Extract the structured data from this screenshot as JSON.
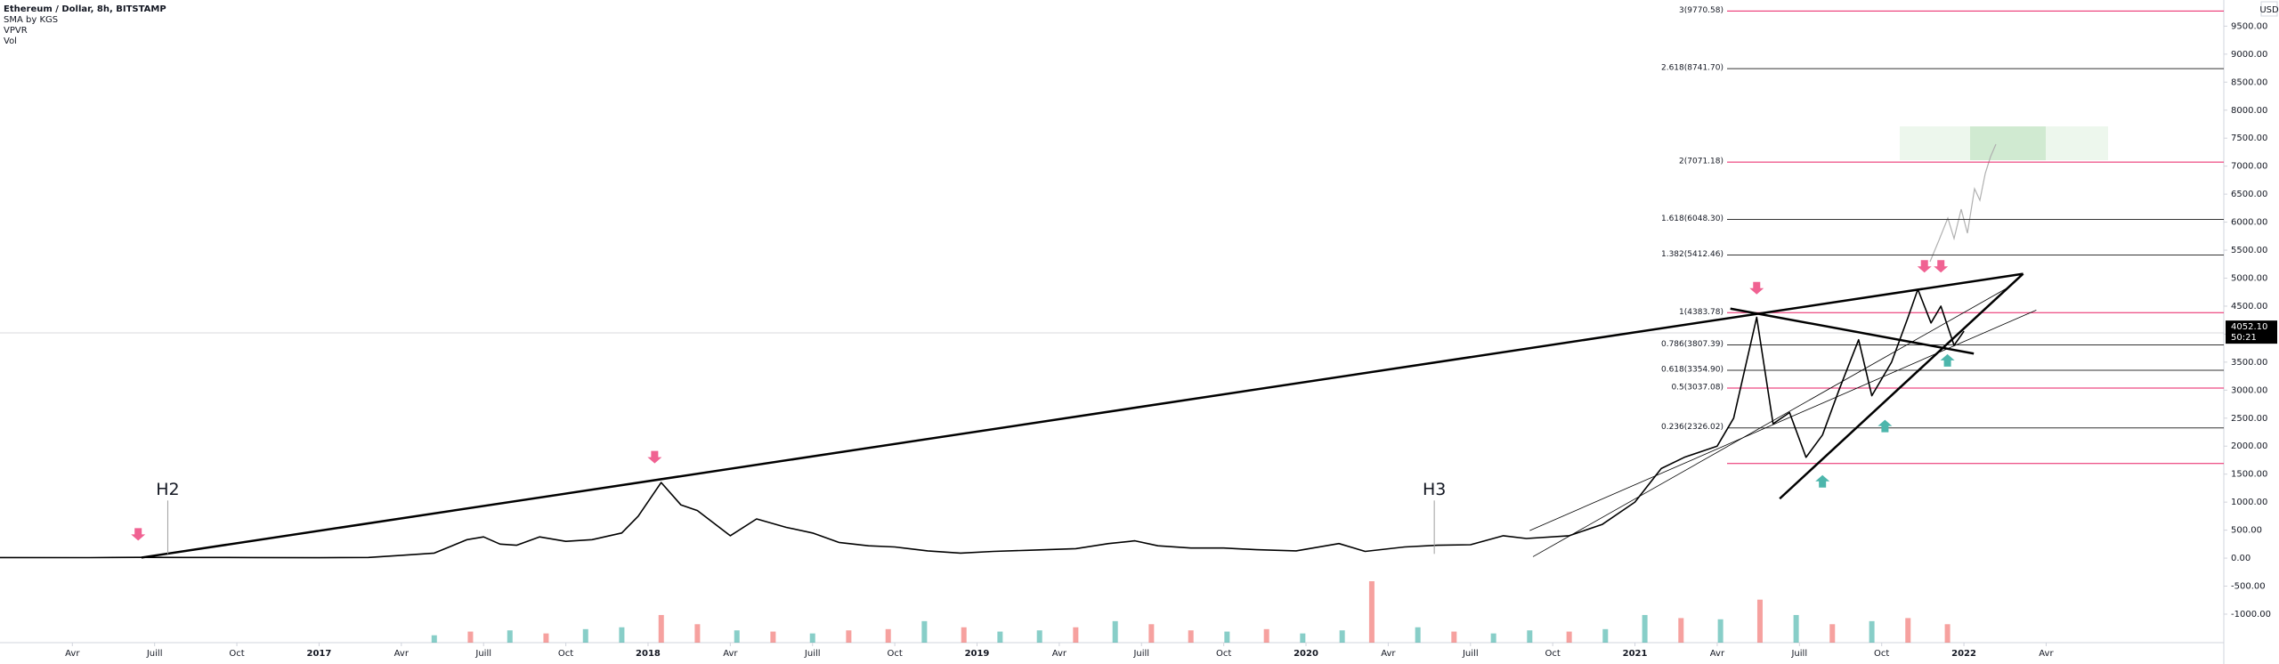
{
  "chart_data": {
    "type": "line",
    "indicators": [
      "SMA by KGS",
      "VPVR",
      "Vol"
    ],
    "currency": "USD",
    "series": [
      {
        "name": "Ethereum / Dollar, 8h, BITSTAMP",
        "color": "#000000",
        "x": [
          2016.03,
          2016.3,
          2016.45,
          2016.6,
          2016.8,
          2017.0,
          2017.15,
          2017.25,
          2017.35,
          2017.45,
          2017.5,
          2017.55,
          2017.6,
          2017.67,
          2017.75,
          2017.83,
          2017.92,
          2017.97,
          2018.04,
          2018.1,
          2018.15,
          2018.25,
          2018.33,
          2018.42,
          2018.5,
          2018.58,
          2018.67,
          2018.75,
          2018.85,
          2018.95,
          2019.05,
          2019.15,
          2019.3,
          2019.4,
          2019.48,
          2019.55,
          2019.65,
          2019.75,
          2019.85,
          2019.97,
          2020.1,
          2020.18,
          2020.3,
          2020.4,
          2020.5,
          2020.6,
          2020.67,
          2020.8,
          2020.9,
          2021.0,
          2021.08,
          2021.15,
          2021.25,
          2021.3,
          2021.37,
          2021.42,
          2021.47,
          2021.52,
          2021.57,
          2021.62,
          2021.68,
          2021.72,
          2021.78,
          2021.83,
          2021.86,
          2021.9,
          2021.93,
          2021.97,
          2022.0
        ],
        "values": [
          10,
          9,
          14,
          12,
          11,
          8,
          12,
          50,
          90,
          330,
          380,
          250,
          230,
          380,
          300,
          330,
          450,
          750,
          1350,
          950,
          850,
          400,
          700,
          550,
          450,
          280,
          220,
          200,
          130,
          90,
          120,
          140,
          170,
          260,
          310,
          220,
          180,
          180,
          150,
          130,
          260,
          120,
          200,
          230,
          240,
          400,
          350,
          400,
          600,
          1000,
          1600,
          1800,
          2000,
          2500,
          4300,
          2400,
          2600,
          1800,
          2200,
          3000,
          3900,
          2900,
          3500,
          4300,
          4800,
          4200,
          4500,
          3800,
          4052
        ]
      }
    ],
    "volume": {
      "x": [
        2017.35,
        2017.46,
        2017.58,
        2017.69,
        2017.81,
        2017.92,
        2018.04,
        2018.15,
        2018.27,
        2018.38,
        2018.5,
        2018.61,
        2018.73,
        2018.84,
        2018.96,
        2019.07,
        2019.19,
        2019.3,
        2019.42,
        2019.53,
        2019.65,
        2019.76,
        2019.88,
        2019.99,
        2020.11,
        2020.2,
        2020.34,
        2020.45,
        2020.57,
        2020.68,
        2020.8,
        2020.91,
        2021.03,
        2021.14,
        2021.26,
        2021.38,
        2021.49,
        2021.6,
        2021.72,
        2021.83,
        2021.95
      ],
      "values": [
        12,
        18,
        20,
        15,
        22,
        25,
        45,
        30,
        20,
        18,
        15,
        20,
        22,
        35,
        25,
        18,
        20,
        25,
        35,
        30,
        20,
        18,
        22,
        15,
        20,
        100,
        25,
        18,
        15,
        20,
        18,
        22,
        45,
        40,
        38,
        70,
        45,
        30,
        35,
        40,
        30
      ],
      "colors": [
        "#26a69a",
        "#ef5350",
        "#26a69a",
        "#ef5350",
        "#26a69a",
        "#26a69a",
        "#ef5350",
        "#ef5350",
        "#26a69a",
        "#ef5350",
        "#26a69a",
        "#ef5350",
        "#ef5350",
        "#26a69a",
        "#ef5350",
        "#26a69a",
        "#26a69a",
        "#ef5350",
        "#26a69a",
        "#ef5350",
        "#ef5350",
        "#26a69a",
        "#ef5350",
        "#26a69a",
        "#26a69a",
        "#ef5350",
        "#26a69a",
        "#ef5350",
        "#26a69a",
        "#26a69a",
        "#ef5350",
        "#26a69a",
        "#26a69a",
        "#ef5350",
        "#26a69a",
        "#ef5350",
        "#26a69a",
        "#ef5350",
        "#26a69a",
        "#ef5350",
        "#ef5350"
      ],
      "vlim": [
        0,
        100
      ]
    },
    "last_price": {
      "value": 4052.1,
      "label": "4052.10"
    },
    "countdown": "50:21",
    "xlim": [
      2016.03,
      2022.79
    ],
    "xticks": [
      {
        "value": 2016.25,
        "label": "Avr"
      },
      {
        "value": 2016.5,
        "label": "Juill"
      },
      {
        "value": 2016.75,
        "label": "Oct"
      },
      2017,
      {
        "value": 2017.25,
        "label": "Avr"
      },
      {
        "value": 2017.5,
        "label": "Juill"
      },
      {
        "value": 2017.75,
        "label": "Oct"
      },
      2018,
      {
        "value": 2018.25,
        "label": "Avr"
      },
      {
        "value": 2018.5,
        "label": "Juill"
      },
      {
        "value": 2018.75,
        "label": "Oct"
      },
      2019,
      {
        "value": 2019.25,
        "label": "Avr"
      },
      {
        "value": 2019.5,
        "label": "Juill"
      },
      {
        "value": 2019.75,
        "label": "Oct"
      },
      2020,
      {
        "value": 2020.25,
        "label": "Avr"
      },
      {
        "value": 2020.5,
        "label": "Juill"
      },
      {
        "value": 2020.75,
        "label": "Oct"
      },
      2021,
      {
        "value": 2021.25,
        "label": "Avr"
      },
      {
        "value": 2021.5,
        "label": "Juill"
      },
      {
        "value": 2021.75,
        "label": "Oct"
      },
      2022,
      {
        "value": 2022.25,
        "label": "Avr"
      }
    ],
    "ylim": [
      -1509,
      9967
    ],
    "yticks": [
      {
        "value": 9500,
        "label": "9500.00"
      },
      {
        "value": 9000,
        "label": "9000.00"
      },
      {
        "value": 8500,
        "label": "8500.00"
      },
      {
        "value": 8000,
        "label": "8000.00"
      },
      {
        "value": 7500,
        "label": "7500.00"
      },
      {
        "value": 7000,
        "label": "7000.00"
      },
      {
        "value": 6500,
        "label": "6500.00"
      },
      {
        "value": 6000,
        "label": "6000.00"
      },
      {
        "value": 5500,
        "label": "5500.00"
      },
      {
        "value": 5000,
        "label": "5000.00"
      },
      {
        "value": 4500,
        "label": "4500.00"
      },
      {
        "value": 4000,
        "label": "4000.00"
      },
      {
        "value": 3500,
        "label": "3500.00"
      },
      {
        "value": 3000,
        "label": "3000.00"
      },
      {
        "value": 2500,
        "label": "2500.00"
      },
      {
        "value": 2000,
        "label": "2000.00"
      },
      {
        "value": 1500,
        "label": "1500.00"
      },
      {
        "value": 1000,
        "label": "1000.00"
      },
      {
        "value": 500,
        "label": "500.00"
      },
      {
        "value": 0,
        "label": "0.00"
      },
      {
        "value": -500,
        "label": "-500.00"
      },
      {
        "value": -1000,
        "label": "-1000.00"
      }
    ],
    "fib_levels": [
      {
        "label": "3(9770.58)",
        "value": 9770.58,
        "color": "#e91e63"
      },
      {
        "label": "2.618(8741.70)",
        "value": 8741.7,
        "color": "#333333"
      },
      {
        "label": "2(7071.18)",
        "value": 7071.18,
        "color": "#e91e63"
      },
      {
        "label": "1.618(6048.30)",
        "value": 6048.3,
        "color": "#333333"
      },
      {
        "label": "1.382(5412.46)",
        "value": 5412.46,
        "color": "#333333"
      },
      {
        "label": "1(4383.78)",
        "value": 4383.78,
        "color": "#e91e63"
      },
      {
        "label": "0.786(3807.39)",
        "value": 3807.39,
        "color": "#333333"
      },
      {
        "label": "0.618(3354.90)",
        "value": 3354.9,
        "color": "#333333"
      },
      {
        "label": "0.5(3037.08)",
        "value": 3037.08,
        "color": "#e91e63"
      },
      {
        "label": "0.236(2326.02)",
        "value": 2326.02,
        "color": "#333333"
      },
      {
        "value": 1690,
        "color": "#e91e63"
      }
    ],
    "fib_start": 2021.28,
    "trendlines": [
      {
        "x": [
          2016.46,
          2022.18
        ],
        "y": [
          10,
          5078
        ],
        "width": 2.5
      },
      {
        "x": [
          2021.29,
          2022.03
        ],
        "y": [
          4456,
          3653
        ],
        "width": 2.5
      },
      {
        "x": [
          2021.44,
          2022.18
        ],
        "y": [
          1062,
          5078
        ],
        "width": 2.5
      },
      {
        "x": [
          2020.68,
          2022.22
        ],
        "y": [
          492,
          4430
        ],
        "width": 0.8
      },
      {
        "x": [
          2020.69,
          2022.13
        ],
        "y": [
          26,
          4819
        ],
        "width": 0.8
      }
    ],
    "markers": [
      {
        "x": 2016.45,
        "y": 312,
        "direction": "down",
        "color": "#f06292"
      },
      {
        "x": 2018.02,
        "y": 1691,
        "direction": "down",
        "color": "#f06292"
      },
      {
        "x": 2021.37,
        "y": 4709,
        "direction": "down",
        "color": "#f06292"
      },
      {
        "x": 2021.88,
        "y": 5099,
        "direction": "down",
        "color": "#f06292"
      },
      {
        "x": 2021.93,
        "y": 5099,
        "direction": "down",
        "color": "#f06292"
      },
      {
        "x": 2021.57,
        "y": 1483,
        "direction": "up",
        "color": "#4db6ac"
      },
      {
        "x": 2021.76,
        "y": 2471,
        "direction": "up",
        "color": "#4db6ac"
      },
      {
        "x": 2021.95,
        "y": 3642,
        "direction": "up",
        "color": "#4db6ac"
      }
    ],
    "annotations": [
      {
        "text": "H2",
        "x": 2016.54,
        "y": 1220
      },
      {
        "text": "H3",
        "x": 2020.39,
        "y": 1220
      }
    ]
  }
}
